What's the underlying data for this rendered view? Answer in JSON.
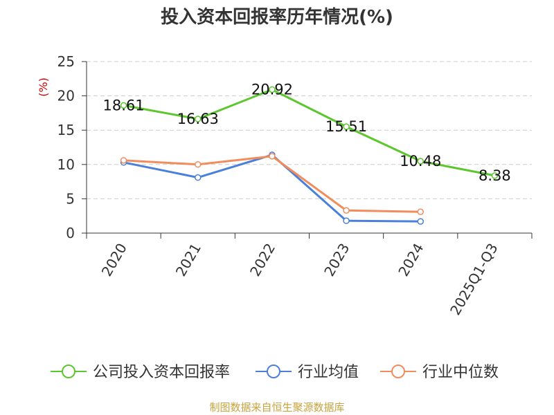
{
  "chart_data": {
    "type": "line",
    "title": "投入资本回报率历年情况(%)",
    "ylabel": "(%)",
    "xlabel": "",
    "categories": [
      "2020",
      "2021",
      "2022",
      "2023",
      "2024",
      "2025Q1-Q3"
    ],
    "ylim": [
      0,
      25
    ],
    "yticks": [
      0,
      5,
      10,
      15,
      20,
      25
    ],
    "grid": true,
    "legend_position": "bottom",
    "series": [
      {
        "name": "公司投入资本回报率",
        "color": "#5cc72d",
        "values": [
          18.61,
          16.63,
          20.92,
          15.51,
          10.48,
          8.38
        ],
        "labels": [
          "18.61",
          "16.63",
          "20.92",
          "15.51",
          "10.48",
          "8.38"
        ]
      },
      {
        "name": "行业均值",
        "color": "#4a7fdc",
        "values": [
          10.3,
          8.1,
          11.4,
          1.8,
          1.7,
          null
        ]
      },
      {
        "name": "行业中位数",
        "color": "#f28c5c",
        "values": [
          10.6,
          10.0,
          11.2,
          3.3,
          3.1,
          null
        ]
      }
    ]
  },
  "footer": {
    "source": "制图数据来自恒生聚源数据库"
  }
}
